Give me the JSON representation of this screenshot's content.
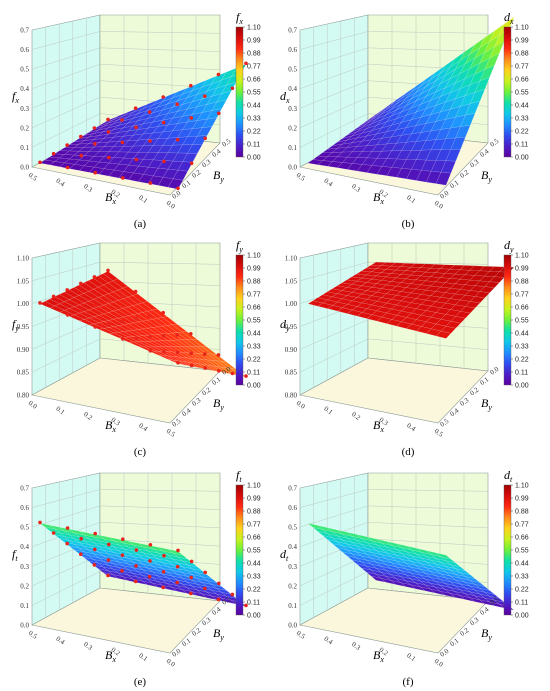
{
  "colorbar_ticks": [
    "1.10",
    "0.99",
    "0.88",
    "0.77",
    "0.66",
    "0.55",
    "0.44",
    "0.33",
    "0.22",
    "0.11",
    "0.00"
  ],
  "colormap": [
    "#5b009f",
    "#4b1ec8",
    "#2f4ef0",
    "#1f90ff",
    "#10c8e8",
    "#10e0a8",
    "#6ef03c",
    "#c8f21e",
    "#ffd21e",
    "#ff8c1a",
    "#ff2a12",
    "#d80c0c",
    "#a00000"
  ],
  "wall_colors": {
    "left": "#d4fbf3",
    "back": "#eefbd8",
    "floor": "#fbf7dc",
    "grid": "#b9c9c0"
  },
  "marker_color": "#e8231b",
  "chart_data": [
    {
      "id": "a",
      "type": "surface3d",
      "caption": "(a)",
      "zlabel": "f",
      "zlabel_sub": "x",
      "xlabel": "B",
      "xlabel_sub": "x",
      "ylabel": "B",
      "ylabel_sub": "y",
      "colorbar_label": "f",
      "colorbar_sub": "x",
      "z_ticks": [
        "0.0",
        "0.1",
        "0.2",
        "0.3",
        "0.4",
        "0.5",
        "0.6",
        "0.7"
      ],
      "zlim": [
        0,
        0.7
      ],
      "x_ticks": [
        "0.5",
        "0.4",
        "0.3",
        "0.2",
        "0.1",
        "0.0"
      ],
      "y_ticks": [
        "0.0",
        "0.1",
        "0.2",
        "0.3",
        "0.4",
        "0.5"
      ],
      "surface": {
        "base": 0.02,
        "corner_x": 0.03,
        "corner_y": 0.05,
        "peak": 0.48
      },
      "markers": true
    },
    {
      "id": "b",
      "type": "surface3d",
      "caption": "(b)",
      "zlabel": "d",
      "zlabel_sub": "x",
      "xlabel": "B",
      "xlabel_sub": "x",
      "ylabel": "B",
      "ylabel_sub": "y",
      "colorbar_label": "d",
      "colorbar_sub": "x",
      "z_ticks": [
        "0.0",
        "0.1",
        "0.2",
        "0.3",
        "0.4",
        "0.5",
        "0.6",
        "0.7"
      ],
      "zlim": [
        0,
        0.7
      ],
      "x_ticks": [
        "0.5",
        "0.4",
        "0.3",
        "0.2",
        "0.1",
        "0.0"
      ],
      "y_ticks": [
        "0.0",
        "0.1",
        "0.2",
        "0.3",
        "0.4",
        "0.5"
      ],
      "surface": {
        "base": 0.02,
        "corner_x": 0.05,
        "corner_y": 0.08,
        "peak": 0.72
      },
      "markers": false
    },
    {
      "id": "c",
      "type": "surface3d",
      "caption": "(c)",
      "zlabel": "f",
      "zlabel_sub": "y",
      "xlabel": "B",
      "xlabel_sub": "x",
      "ylabel": "B",
      "ylabel_sub": "y",
      "colorbar_label": "f",
      "colorbar_sub": "y",
      "z_ticks": [
        "0.80",
        "0.85",
        "0.90",
        "0.95",
        "1.00",
        "1.05",
        "1.10"
      ],
      "zlim": [
        0.8,
        1.1
      ],
      "x_ticks": [
        "0.0",
        "0.1",
        "0.2",
        "0.3",
        "0.4",
        "0.5"
      ],
      "y_ticks": [
        "0.5",
        "0.4",
        "0.3",
        "0.2",
        "0.1",
        "0.0"
      ],
      "surface": {
        "base": 1.0,
        "corner_x": 0.93,
        "corner_y": 0.99,
        "peak": 0.82
      },
      "markers": true
    },
    {
      "id": "d",
      "type": "surface3d",
      "caption": "(d)",
      "zlabel": "d",
      "zlabel_sub": "y",
      "xlabel": "B",
      "xlabel_sub": "x",
      "ylabel": "B",
      "ylabel_sub": "y",
      "colorbar_label": "d",
      "colorbar_sub": "y",
      "z_ticks": [
        "0.80",
        "0.85",
        "0.90",
        "0.95",
        "1.00",
        "1.05",
        "1.10"
      ],
      "zlim": [
        0.8,
        1.1
      ],
      "x_ticks": [
        "0.0",
        "0.1",
        "0.2",
        "0.3",
        "0.4",
        "0.5"
      ],
      "y_ticks": [
        "0.5",
        "0.4",
        "0.3",
        "0.2",
        "0.1",
        "0.0"
      ],
      "surface": {
        "base": 1.0,
        "corner_x": 0.985,
        "corner_y": 1.01,
        "peak": 1.06
      },
      "markers": false
    },
    {
      "id": "e",
      "type": "surface3d",
      "caption": "(e)",
      "zlabel": "f",
      "zlabel_sub": "t",
      "xlabel": "B",
      "xlabel_sub": "x",
      "ylabel": "B",
      "ylabel_sub": "y",
      "colorbar_label": "f",
      "colorbar_sub": "t",
      "z_ticks": [
        "0.0",
        "0.1",
        "0.2",
        "0.3",
        "0.4",
        "0.5",
        "0.6",
        "0.7"
      ],
      "zlim": [
        0,
        0.7
      ],
      "x_ticks": [
        "0.5",
        "0.4",
        "0.3",
        "0.2",
        "0.1",
        "0.0"
      ],
      "y_ticks": [
        "0.0",
        "0.1",
        "0.2",
        "0.3",
        "0.4",
        "0.5"
      ],
      "surface": {
        "base": 0.52,
        "corner_x": 0.52,
        "corner_y": 0.06,
        "peak": 0.05
      },
      "markers": true
    },
    {
      "id": "f",
      "type": "surface3d",
      "caption": "(f)",
      "zlabel": "d",
      "zlabel_sub": "t",
      "xlabel": "B",
      "xlabel_sub": "x",
      "ylabel": "B",
      "ylabel_sub": "y",
      "colorbar_label": "d",
      "colorbar_sub": "t",
      "z_ticks": [
        "0.0",
        "0.1",
        "0.2",
        "0.3",
        "0.4",
        "0.5",
        "0.6",
        "0.7"
      ],
      "zlim": [
        0,
        0.7
      ],
      "x_ticks": [
        "0.5",
        "0.4",
        "0.3",
        "0.2",
        "0.1",
        "0.0"
      ],
      "y_ticks": [
        "0.0",
        "0.1",
        "0.2",
        "0.3",
        "0.4",
        "0.5"
      ],
      "surface": {
        "base": 0.52,
        "corner_x": 0.5,
        "corner_y": 0.04,
        "peak": 0.03
      },
      "markers": false
    }
  ]
}
